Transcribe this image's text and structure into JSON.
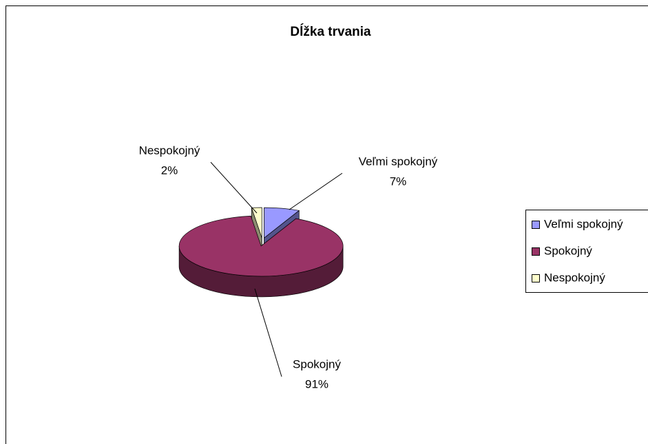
{
  "chart_data": {
    "type": "pie",
    "title": "Dĺžka trvania",
    "categories": [
      "Veľmi spokojný",
      "Spokojný",
      "Nespokojný"
    ],
    "values": [
      7,
      91,
      2
    ],
    "value_labels": [
      "7%",
      "91%",
      "2%"
    ],
    "colors": [
      "#9999ff",
      "#993366",
      "#ffffcc"
    ],
    "legend": "right"
  }
}
